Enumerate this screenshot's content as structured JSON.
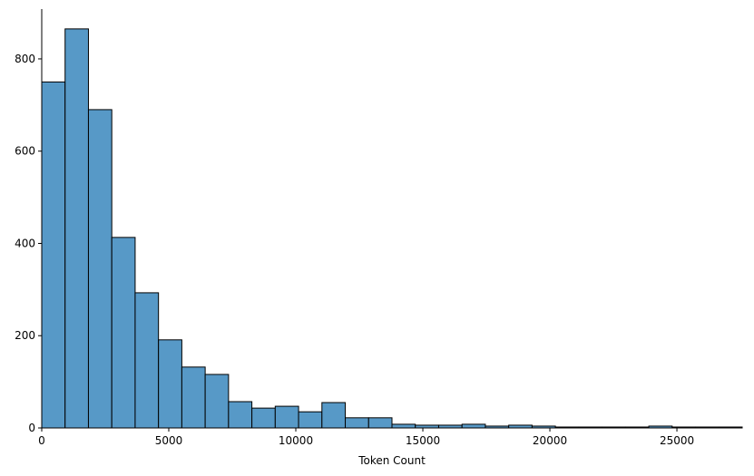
{
  "chart_data": {
    "type": "histogram",
    "xlabel": "Token Count",
    "bins": [
      0,
      919,
      1838,
      2757,
      3676,
      4595,
      5514,
      6433,
      7352,
      8271,
      9190,
      10109,
      11028,
      11947,
      12866,
      13785,
      14704,
      15623,
      16542,
      17461,
      18380,
      19299,
      20218,
      21137,
      22056,
      22975,
      23894,
      24813,
      25732,
      26651,
      27570
    ],
    "values": [
      750,
      865,
      690,
      413,
      293,
      191,
      132,
      116,
      57,
      43,
      47,
      35,
      55,
      22,
      22,
      8,
      6,
      6,
      8,
      4,
      6,
      4,
      2,
      2,
      2,
      2,
      4,
      2,
      2,
      2
    ],
    "color": "#5799c7",
    "edgecolor": "#000000",
    "xlim": [
      0,
      27570
    ],
    "xticks": [
      0,
      5000,
      10000,
      15000,
      20000,
      25000
    ],
    "ylim": [
      0,
      908
    ],
    "yticks": [
      0,
      200,
      400,
      600,
      800
    ]
  }
}
